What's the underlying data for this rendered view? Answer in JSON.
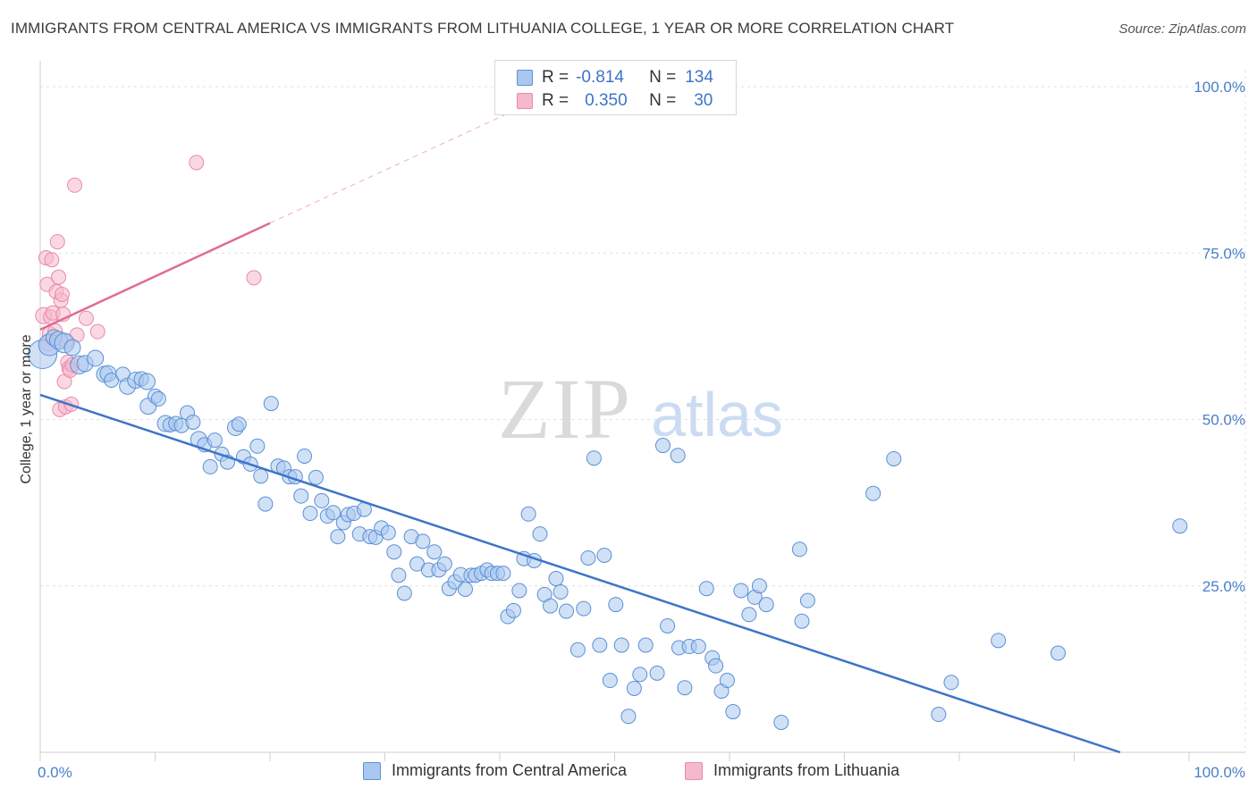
{
  "header": {
    "title": "IMMIGRANTS FROM CENTRAL AMERICA VS IMMIGRANTS FROM LITHUANIA COLLEGE, 1 YEAR OR MORE CORRELATION CHART",
    "source": "Source: ZipAtlas.com"
  },
  "watermark": {
    "zip": "ZIP",
    "atlas": "atlas"
  },
  "legend": {
    "r_label": "R =",
    "n_label": "N =",
    "central_america": {
      "r": "-0.814",
      "n": "134"
    },
    "lithuania": {
      "r": "0.350",
      "n": "30"
    }
  },
  "bottom_legend": {
    "central_america": "Immigrants from Central America",
    "lithuania": "Immigrants from Lithuania"
  },
  "colors": {
    "central_america_fill": "#a9c8ef",
    "central_america_stroke": "#5b8fd6",
    "central_america_line": "#3d74c8",
    "lithuania_fill": "#f6b8cb",
    "lithuania_stroke": "#e98aa9",
    "lithuania_line": "#e06b94",
    "tick_text": "#4a7fc9",
    "grid": "#e0e0e0"
  },
  "chart_data": {
    "type": "scatter",
    "title": "IMMIGRANTS FROM CENTRAL AMERICA VS IMMIGRANTS FROM LITHUANIA COLLEGE, 1 YEAR OR MORE CORRELATION CHART",
    "xlabel": "",
    "ylabel": "College, 1 year or more",
    "xlim": [
      0,
      100
    ],
    "ylim": [
      0,
      100
    ],
    "x_tick_labels": [
      "0.0%",
      "100.0%"
    ],
    "y_tick_labels": [
      "25.0%",
      "50.0%",
      "75.0%",
      "100.0%"
    ],
    "y_ticks": [
      25,
      50,
      75,
      100
    ],
    "grid": true,
    "legend_position": "top-center",
    "series": [
      {
        "name": "Immigrants from Central America",
        "r": -0.814,
        "n": 134,
        "trend": {
          "x": [
            0,
            94
          ],
          "y": [
            53.7,
            0
          ]
        },
        "points": [
          [
            0.2,
            59.8,
            16
          ],
          [
            0.8,
            61.2,
            12
          ],
          [
            1.2,
            62.3,
            9
          ],
          [
            1.6,
            61.9,
            10
          ],
          [
            2.1,
            61.5,
            11
          ],
          [
            2.8,
            60.8,
            9
          ],
          [
            3.4,
            58.2,
            10
          ],
          [
            3.9,
            58.4,
            9
          ],
          [
            4.8,
            59.2,
            9
          ],
          [
            5.6,
            56.8,
            9
          ],
          [
            5.9,
            56.9,
            9
          ],
          [
            6.2,
            55.9,
            8
          ],
          [
            7.2,
            56.8,
            8
          ],
          [
            7.6,
            55.0,
            9
          ],
          [
            8.3,
            55.9,
            9
          ],
          [
            8.8,
            56.1,
            8
          ],
          [
            9.3,
            55.7,
            9
          ],
          [
            9.4,
            52.0,
            9
          ],
          [
            10.0,
            53.5,
            8
          ],
          [
            10.3,
            53.1,
            8
          ],
          [
            10.9,
            49.4,
            9
          ],
          [
            11.3,
            49.2,
            8
          ],
          [
            11.8,
            49.4,
            8
          ],
          [
            12.3,
            49.1,
            8
          ],
          [
            12.8,
            51.0,
            8
          ],
          [
            13.3,
            49.6,
            8
          ],
          [
            13.8,
            47.0,
            9
          ],
          [
            14.3,
            46.2,
            8
          ],
          [
            14.8,
            42.9,
            8
          ],
          [
            15.2,
            46.9,
            8
          ],
          [
            15.8,
            44.8,
            8
          ],
          [
            16.3,
            43.6,
            8
          ],
          [
            17.0,
            48.8,
            9
          ],
          [
            17.3,
            49.3,
            8
          ],
          [
            17.7,
            44.4,
            8
          ],
          [
            18.3,
            43.3,
            8
          ],
          [
            18.9,
            46.0,
            8
          ],
          [
            19.2,
            41.5,
            8
          ],
          [
            19.6,
            37.3,
            8
          ],
          [
            20.1,
            52.4,
            8
          ],
          [
            20.7,
            43.0,
            8
          ],
          [
            21.2,
            42.7,
            8
          ],
          [
            21.7,
            41.4,
            8
          ],
          [
            22.2,
            41.4,
            8
          ],
          [
            22.7,
            38.5,
            8
          ],
          [
            23.0,
            44.5,
            8
          ],
          [
            23.5,
            35.9,
            8
          ],
          [
            24.0,
            41.3,
            8
          ],
          [
            24.5,
            37.8,
            8
          ],
          [
            25.0,
            35.5,
            8
          ],
          [
            25.5,
            36.0,
            8
          ],
          [
            25.9,
            32.4,
            8
          ],
          [
            26.4,
            34.5,
            8
          ],
          [
            26.8,
            35.7,
            8
          ],
          [
            27.3,
            35.9,
            8
          ],
          [
            27.8,
            32.8,
            8
          ],
          [
            28.2,
            36.5,
            8
          ],
          [
            28.7,
            32.4,
            8
          ],
          [
            29.2,
            32.3,
            8
          ],
          [
            29.7,
            33.7,
            8
          ],
          [
            30.3,
            33.0,
            8
          ],
          [
            30.8,
            30.1,
            8
          ],
          [
            31.2,
            26.6,
            8
          ],
          [
            31.7,
            23.9,
            8
          ],
          [
            32.3,
            32.4,
            8
          ],
          [
            32.8,
            28.3,
            8
          ],
          [
            33.3,
            31.7,
            8
          ],
          [
            33.8,
            27.4,
            8
          ],
          [
            34.3,
            30.1,
            8
          ],
          [
            34.7,
            27.4,
            8
          ],
          [
            35.2,
            28.3,
            8
          ],
          [
            35.6,
            24.6,
            8
          ],
          [
            36.1,
            25.6,
            8
          ],
          [
            36.6,
            26.7,
            8
          ],
          [
            37.0,
            24.5,
            8
          ],
          [
            37.5,
            26.6,
            8
          ],
          [
            37.9,
            26.6,
            8
          ],
          [
            38.4,
            26.9,
            8
          ],
          [
            38.9,
            27.4,
            8
          ],
          [
            39.3,
            26.9,
            8
          ],
          [
            39.8,
            26.9,
            8
          ],
          [
            40.3,
            26.9,
            8
          ],
          [
            40.7,
            20.4,
            8
          ],
          [
            41.2,
            21.3,
            8
          ],
          [
            41.7,
            24.3,
            8
          ],
          [
            42.1,
            29.1,
            8
          ],
          [
            42.5,
            35.8,
            8
          ],
          [
            43.0,
            28.8,
            8
          ],
          [
            43.5,
            32.8,
            8
          ],
          [
            43.9,
            23.7,
            8
          ],
          [
            44.4,
            22.0,
            8
          ],
          [
            44.9,
            26.1,
            8
          ],
          [
            45.3,
            24.1,
            8
          ],
          [
            45.8,
            21.2,
            8
          ],
          [
            46.8,
            15.4,
            8
          ],
          [
            47.3,
            21.6,
            8
          ],
          [
            47.7,
            29.2,
            8
          ],
          [
            48.2,
            44.2,
            8
          ],
          [
            48.7,
            16.1,
            8
          ],
          [
            49.1,
            29.6,
            8
          ],
          [
            49.6,
            10.8,
            8
          ],
          [
            50.1,
            22.2,
            8
          ],
          [
            50.6,
            16.1,
            8
          ],
          [
            51.2,
            5.4,
            8
          ],
          [
            51.7,
            9.6,
            8
          ],
          [
            52.2,
            11.7,
            8
          ],
          [
            52.7,
            16.1,
            8
          ],
          [
            53.7,
            11.9,
            8
          ],
          [
            54.2,
            46.1,
            8
          ],
          [
            54.6,
            19.0,
            8
          ],
          [
            55.5,
            44.6,
            8
          ],
          [
            55.6,
            15.7,
            8
          ],
          [
            56.1,
            9.7,
            8
          ],
          [
            56.5,
            15.9,
            8
          ],
          [
            57.3,
            15.9,
            8
          ],
          [
            58.0,
            24.6,
            8
          ],
          [
            58.5,
            14.2,
            8
          ],
          [
            58.8,
            13.0,
            8
          ],
          [
            59.3,
            9.2,
            8
          ],
          [
            59.8,
            10.8,
            8
          ],
          [
            60.3,
            6.1,
            8
          ],
          [
            61.0,
            24.3,
            8
          ],
          [
            61.7,
            20.7,
            8
          ],
          [
            62.2,
            23.3,
            8
          ],
          [
            62.6,
            25.0,
            8
          ],
          [
            63.2,
            22.2,
            8
          ],
          [
            64.5,
            4.5,
            8
          ],
          [
            66.1,
            30.5,
            8
          ],
          [
            66.3,
            19.7,
            8
          ],
          [
            66.8,
            22.8,
            8
          ],
          [
            72.5,
            38.9,
            8
          ],
          [
            74.3,
            44.1,
            8
          ],
          [
            78.2,
            5.7,
            8
          ],
          [
            79.3,
            10.5,
            8
          ],
          [
            83.4,
            16.8,
            8
          ],
          [
            88.6,
            14.9,
            8
          ],
          [
            99.2,
            34.0,
            8
          ]
        ]
      },
      {
        "name": "Immigrants from Lithuania",
        "r": 0.35,
        "n": 30,
        "trend_solid": {
          "x": [
            0,
            20
          ],
          "y": [
            63.5,
            79.5
          ]
        },
        "trend_dashed": {
          "x": [
            20,
            40.5
          ],
          "y": [
            79.5,
            95.8
          ]
        },
        "points": [
          [
            0.3,
            65.6,
            9
          ],
          [
            0.5,
            74.3,
            8
          ],
          [
            0.6,
            70.3,
            8
          ],
          [
            0.7,
            61.5,
            9
          ],
          [
            0.8,
            62.9,
            8
          ],
          [
            0.9,
            65.4,
            8
          ],
          [
            1.0,
            74.0,
            8
          ],
          [
            1.1,
            66.0,
            8
          ],
          [
            1.3,
            63.3,
            8
          ],
          [
            1.4,
            69.2,
            8
          ],
          [
            1.5,
            76.7,
            8
          ],
          [
            1.6,
            71.4,
            8
          ],
          [
            1.7,
            51.5,
            8
          ],
          [
            1.8,
            67.9,
            8
          ],
          [
            1.9,
            68.8,
            8
          ],
          [
            2.0,
            65.8,
            8
          ],
          [
            2.1,
            55.7,
            8
          ],
          [
            2.2,
            51.9,
            8
          ],
          [
            2.3,
            61.7,
            8
          ],
          [
            2.4,
            58.6,
            8
          ],
          [
            2.5,
            57.7,
            8
          ],
          [
            2.6,
            57.4,
            8
          ],
          [
            2.7,
            52.3,
            8
          ],
          [
            2.8,
            58.2,
            8
          ],
          [
            3.0,
            85.2,
            8
          ],
          [
            3.2,
            62.7,
            8
          ],
          [
            4.0,
            65.2,
            8
          ],
          [
            5.0,
            63.2,
            8
          ],
          [
            13.6,
            88.6,
            8
          ],
          [
            18.6,
            71.3,
            8
          ]
        ]
      }
    ]
  }
}
